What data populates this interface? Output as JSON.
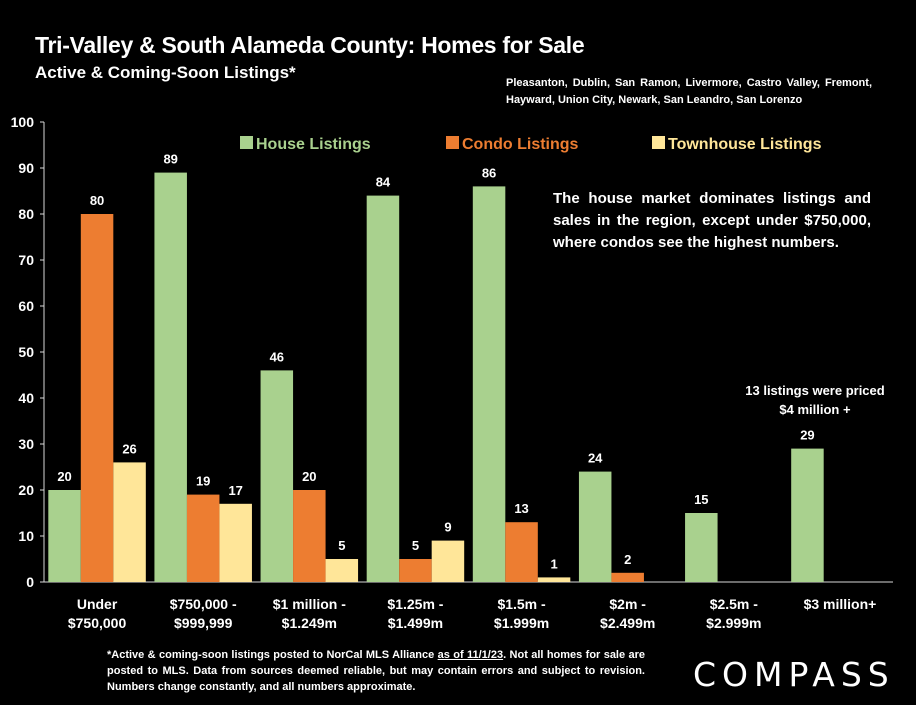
{
  "header": {
    "title": "Tri-Valley & South Alameda County: Homes for Sale",
    "subtitle": "Active & Coming-Soon Listings*",
    "regions": "Pleasanton, Dublin, San Ramon, Livermore, Castro Valley, Fremont, Hayward, Union City, Newark, San Leandro, San Lorenzo"
  },
  "notes": {
    "market": "The house market dominates listings and sales in the region, except under $750,000, where condos see the highest numbers.",
    "four_million": "13 listings were priced $4 million +"
  },
  "footnote": {
    "before": "*Active & coming-soon listings posted to NorCal MLS Alliance ",
    "underlined": "as of 11/1/23",
    "after": ". Not all homes for sale are posted to MLS. Data from sources deemed reliable, but may contain errors and subject to revision. Numbers change constantly, and all numbers approximate."
  },
  "logo": "COMPASS",
  "chart_data": {
    "type": "bar",
    "categories": [
      [
        "Under",
        "$750,000"
      ],
      [
        "$750,000 -",
        "$999,999"
      ],
      [
        "$1 million -",
        "$1.249m"
      ],
      [
        "$1.25m -",
        "$1.499m"
      ],
      [
        "$1.5m -",
        "$1.999m"
      ],
      [
        "$2m -",
        "$2.499m"
      ],
      [
        "$2.5m -",
        "$2.999m"
      ],
      [
        "$3 million+"
      ]
    ],
    "series": [
      {
        "name": "House Listings",
        "color": "#a9d18e",
        "label_color": "#a9d18e",
        "values": [
          20,
          89,
          46,
          84,
          86,
          24,
          15,
          29
        ]
      },
      {
        "name": "Condo Listings",
        "color": "#ed7d31",
        "label_color": "#ed7d31",
        "values": [
          80,
          19,
          20,
          5,
          13,
          2,
          null,
          null
        ]
      },
      {
        "name": "Townhouse Listings",
        "color": "#ffe699",
        "label_color": "#ffe699",
        "values": [
          26,
          17,
          5,
          9,
          1,
          null,
          null,
          null
        ]
      }
    ],
    "ylim": [
      0,
      100
    ],
    "yticks": [
      0,
      10,
      20,
      30,
      40,
      50,
      60,
      70,
      80,
      90,
      100
    ],
    "grid": false,
    "legend_position": "top"
  }
}
